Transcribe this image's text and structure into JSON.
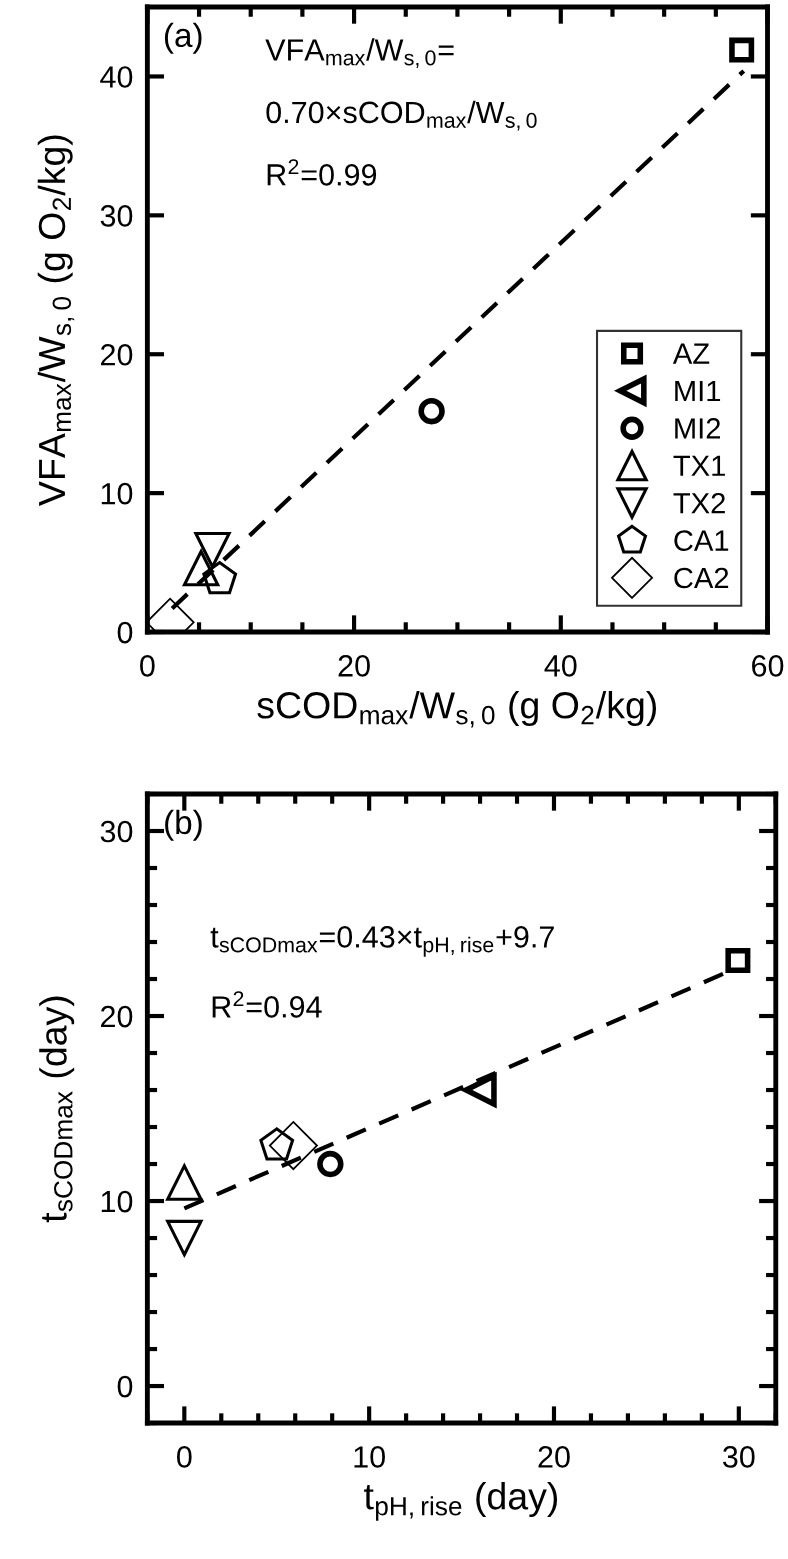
{
  "chart_data": [
    {
      "type": "scatter",
      "xlabel": "sCOD$_{max}$/W$_{s,0}$ (g O$_{2}$/kg)",
      "ylabel": "VFA$_{max}$/W$_{s,0}$ (g O$_{2}$/kg)",
      "annotations": [
        "(a)",
        "VFA$_{max}$/W$_{s,0}$=",
        "0.70×sCOD$_{max}$/W$_{s,0}$",
        "R$^{2}$=0.99"
      ],
      "xlim": [
        0,
        60
      ],
      "ylim": [
        0,
        45
      ],
      "xticks": [
        0,
        20,
        40,
        60
      ],
      "yticks": [
        0,
        10,
        20,
        30,
        40
      ],
      "grid": false,
      "legend": "lower right",
      "series": [
        {
          "name": "AZ",
          "color": "#000000",
          "marker": "square",
          "x": [
            57.5
          ],
          "values": [
            41.9
          ]
        },
        {
          "name": "MI1",
          "color": "#000000",
          "marker": "triangle-left",
          "x": [
            null
          ],
          "values": [
            null
          ]
        },
        {
          "name": "MI2",
          "color": "#000000",
          "marker": "circle",
          "x": [
            27.5
          ],
          "values": [
            15.9
          ]
        },
        {
          "name": "TX1",
          "color": "#000000",
          "marker": "triangle",
          "x": [
            5.2
          ],
          "values": [
            4.6
          ]
        },
        {
          "name": "TX2",
          "color": "#000000",
          "marker": "triangle-down",
          "x": [
            6.3
          ],
          "values": [
            5.9
          ]
        },
        {
          "name": "CA1",
          "color": "#000000",
          "x": [
            7.0
          ],
          "values": [
            3.8
          ]
        },
        {
          "name": "CA2",
          "color": "#000000",
          "marker": "diamond",
          "x": [
            2.2
          ],
          "values": [
            0.7
          ]
        },
        {
          "type": "line",
          "color": "#000000",
          "line_style": "dashed",
          "marker": "none",
          "x": [
            2.4,
            57.7
          ],
          "values": [
            1.7,
            40.4
          ]
        }
      ]
    },
    {
      "type": "scatter",
      "xlabel": "t$_{pH,rise}$ (day)",
      "ylabel": "t$_{sCODmax}$ (day)",
      "annotations": [
        "(b)",
        "t$_{sCODmax}$=0.43×t$_{pH,rise}$+9.7",
        "R$^{2}$=0.94"
      ],
      "xlim": [
        -2,
        32
      ],
      "ylim": [
        -2,
        32
      ],
      "xticks": [
        0,
        10,
        20,
        30
      ],
      "yticks": [
        0,
        10,
        20,
        30
      ],
      "grid": false,
      "legend": false,
      "series": [
        {
          "color": "#000000",
          "marker": "square",
          "x": [
            29.95
          ],
          "values": [
            23.0
          ]
        },
        {
          "color": "#000000",
          "marker": "triangle-left",
          "x": [
            16.0
          ],
          "values": [
            16.0
          ]
        },
        {
          "color": "#000000",
          "marker": "circle",
          "x": [
            7.9
          ],
          "values": [
            12.0
          ]
        },
        {
          "color": "#000000",
          "marker": "triangle",
          "x": [
            0
          ],
          "values": [
            11.0
          ]
        },
        {
          "color": "#000000",
          "marker": "triangle-down",
          "x": [
            0
          ],
          "values": [
            8.0
          ]
        },
        {
          "color": "#000000",
          "x": [
            5.0
          ],
          "values": [
            13.0
          ]
        },
        {
          "color": "#000000",
          "marker": "diamond",
          "x": [
            5.9
          ],
          "values": [
            13.0
          ]
        },
        {
          "type": "line",
          "color": "#000000",
          "line_style": "dashed",
          "marker": "none",
          "x": [
            0,
            29.2
          ],
          "values": [
            9.6,
            22.3
          ]
        }
      ]
    }
  ]
}
